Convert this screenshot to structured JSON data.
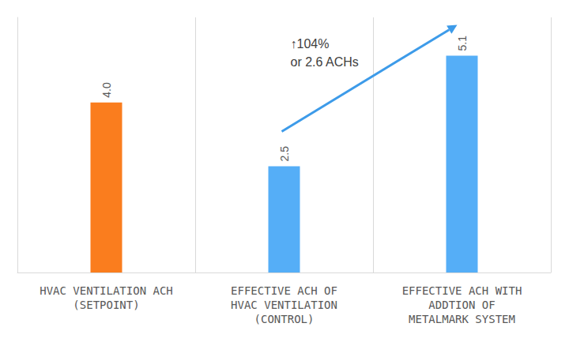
{
  "chart_data": {
    "type": "bar",
    "categories": [
      "HVAC VENTILATION ACH\n(SETPOINT)",
      "EFFECTIVE ACH OF\nHVAC VENTILATION\n(CONTROL)",
      "EFFECTIVE ACH WITH\nADDTION OF\nMETALMARK SYSTEM"
    ],
    "values": [
      4.0,
      2.5,
      5.1
    ],
    "value_labels": [
      "4.0",
      "2.5",
      "5.1"
    ],
    "colors": [
      "#fa7d1e",
      "#55aef7",
      "#55aef7"
    ],
    "ylim": [
      0,
      6
    ],
    "grid": false,
    "data_labels": true,
    "tick_labels": "x",
    "annotation": "↑104%\nor 2.6 ACHs"
  }
}
